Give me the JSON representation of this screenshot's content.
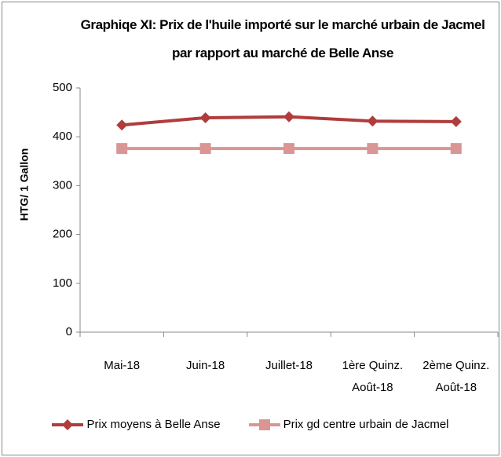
{
  "chart_data": {
    "type": "line",
    "title": "Graphiqe XI: Prix de l'huile importé sur le marché urbain de Jacmel par rapport au marché de Belle Anse",
    "y_label": "HTG/ 1 Gallon",
    "categories": [
      "Mai-18",
      "Juin-18",
      "Juillet-18",
      "1ère Quinz. Août-18",
      "2ème Quinz. Août-18"
    ],
    "series": [
      {
        "name": "Prix moyens à Belle Anse",
        "color": "#b03c3c",
        "marker": "diamond",
        "values": [
          424,
          439,
          441,
          432,
          431
        ]
      },
      {
        "name": "Prix gd centre urbain de Jacmel",
        "color": "#d99694",
        "marker": "square",
        "values": [
          376,
          376,
          376,
          376,
          376
        ]
      }
    ],
    "ylim": [
      0,
      500
    ],
    "yticks": [
      0,
      100,
      200,
      300,
      400,
      500
    ],
    "grid": false,
    "legend": "bottom"
  }
}
